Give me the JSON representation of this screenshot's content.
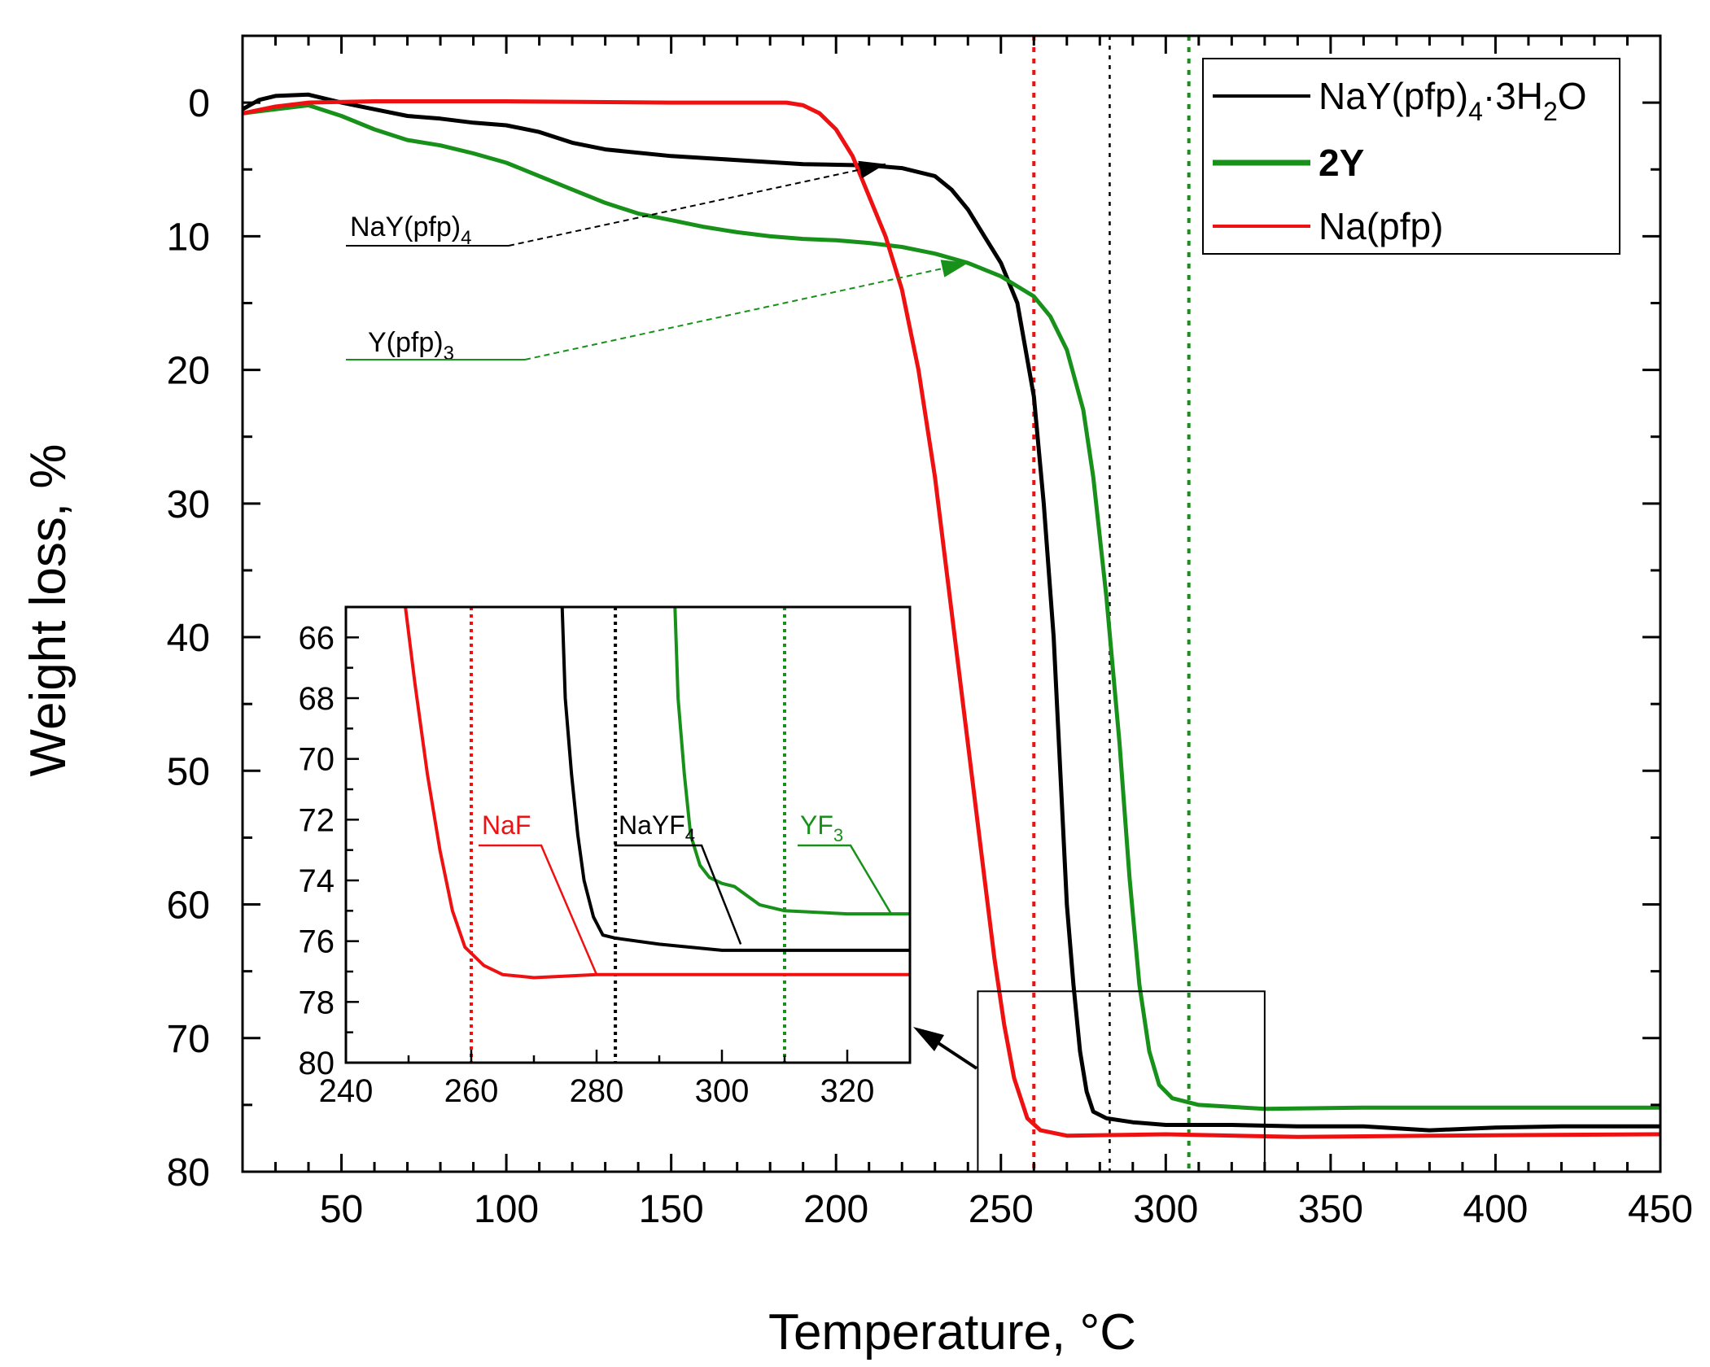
{
  "chart_data": {
    "type": "line",
    "xlabel": "Temperature, °C",
    "ylabel": "Weight loss, %",
    "xlim": [
      20,
      450
    ],
    "ylim": [
      80,
      -5
    ],
    "y_inverted": true,
    "xticks": [
      50,
      100,
      150,
      200,
      250,
      300,
      350,
      400,
      450
    ],
    "yticks": [
      0,
      10,
      20,
      30,
      40,
      50,
      60,
      70,
      80
    ],
    "series": [
      {
        "name": "NaY(pfp)4·3H2O",
        "color": "#000000",
        "points": [
          [
            20,
            0.5
          ],
          [
            25,
            -0.2
          ],
          [
            30,
            -0.5
          ],
          [
            40,
            -0.6
          ],
          [
            50,
            0
          ],
          [
            60,
            0.5
          ],
          [
            70,
            1
          ],
          [
            80,
            1.2
          ],
          [
            90,
            1.5
          ],
          [
            100,
            1.7
          ],
          [
            110,
            2.2
          ],
          [
            120,
            3
          ],
          [
            130,
            3.5
          ],
          [
            150,
            4
          ],
          [
            170,
            4.3
          ],
          [
            190,
            4.6
          ],
          [
            210,
            4.7
          ],
          [
            220,
            4.9
          ],
          [
            230,
            5.5
          ],
          [
            235,
            6.5
          ],
          [
            240,
            8
          ],
          [
            245,
            10
          ],
          [
            250,
            12
          ],
          [
            255,
            15
          ],
          [
            260,
            22
          ],
          [
            263,
            30
          ],
          [
            266,
            40
          ],
          [
            268,
            50
          ],
          [
            270,
            60
          ],
          [
            272,
            66
          ],
          [
            274,
            71
          ],
          [
            276,
            74
          ],
          [
            278,
            75.5
          ],
          [
            282,
            76
          ],
          [
            290,
            76.3
          ],
          [
            300,
            76.5
          ],
          [
            320,
            76.5
          ],
          [
            340,
            76.6
          ],
          [
            360,
            76.6
          ],
          [
            380,
            76.9
          ],
          [
            400,
            76.7
          ],
          [
            420,
            76.6
          ],
          [
            450,
            76.6
          ]
        ]
      },
      {
        "name": "2Y",
        "color": "#17911a",
        "points": [
          [
            20,
            0.8
          ],
          [
            30,
            0.5
          ],
          [
            40,
            0.2
          ],
          [
            50,
            1
          ],
          [
            60,
            2
          ],
          [
            70,
            2.8
          ],
          [
            80,
            3.2
          ],
          [
            90,
            3.8
          ],
          [
            100,
            4.5
          ],
          [
            110,
            5.5
          ],
          [
            120,
            6.5
          ],
          [
            130,
            7.5
          ],
          [
            140,
            8.3
          ],
          [
            150,
            8.8
          ],
          [
            160,
            9.3
          ],
          [
            170,
            9.7
          ],
          [
            180,
            10
          ],
          [
            190,
            10.2
          ],
          [
            200,
            10.3
          ],
          [
            210,
            10.5
          ],
          [
            220,
            10.8
          ],
          [
            230,
            11.3
          ],
          [
            240,
            12
          ],
          [
            250,
            13
          ],
          [
            260,
            14.5
          ],
          [
            265,
            16
          ],
          [
            270,
            18.5
          ],
          [
            275,
            23
          ],
          [
            278,
            28
          ],
          [
            282,
            37
          ],
          [
            286,
            48
          ],
          [
            289,
            58
          ],
          [
            292,
            66
          ],
          [
            295,
            71
          ],
          [
            298,
            73.5
          ],
          [
            302,
            74.5
          ],
          [
            310,
            75
          ],
          [
            330,
            75.3
          ],
          [
            360,
            75.2
          ],
          [
            400,
            75.2
          ],
          [
            450,
            75.2
          ]
        ]
      },
      {
        "name": "Na(pfp)",
        "color": "#ef1111",
        "points": [
          [
            20,
            0.8
          ],
          [
            30,
            0.3
          ],
          [
            40,
            0
          ],
          [
            60,
            -0.1
          ],
          [
            100,
            -0.1
          ],
          [
            150,
            0
          ],
          [
            185,
            0
          ],
          [
            190,
            0.2
          ],
          [
            195,
            0.8
          ],
          [
            200,
            2
          ],
          [
            205,
            4
          ],
          [
            210,
            7
          ],
          [
            215,
            10
          ],
          [
            220,
            14
          ],
          [
            225,
            20
          ],
          [
            230,
            28
          ],
          [
            235,
            38
          ],
          [
            240,
            48
          ],
          [
            245,
            58
          ],
          [
            248,
            64
          ],
          [
            251,
            69
          ],
          [
            254,
            73
          ],
          [
            258,
            76
          ],
          [
            262,
            76.9
          ],
          [
            270,
            77.3
          ],
          [
            300,
            77.2
          ],
          [
            340,
            77.4
          ],
          [
            380,
            77.3
          ],
          [
            450,
            77.2
          ]
        ]
      }
    ],
    "vlines": [
      {
        "x": 260,
        "color": "#ef1111",
        "style": "dotted"
      },
      {
        "x": 283,
        "color": "#000000",
        "style": "dotted"
      },
      {
        "x": 307,
        "color": "#17911a",
        "style": "dotted"
      }
    ],
    "legend": {
      "position": "top-right",
      "entries": [
        {
          "label": "NaY(pfp)4·3H2O",
          "color": "#000000",
          "bold": false
        },
        {
          "label": "2Y",
          "color": "#17911a",
          "bold": true
        },
        {
          "label": "Na(pfp)",
          "color": "#ef1111",
          "bold": false
        }
      ]
    },
    "annotations": [
      {
        "text": "NaY(pfp)4",
        "color": "#000000",
        "arrow_to": [
          215,
          4.6
        ]
      },
      {
        "text": "Y(pfp)3",
        "color": "#17911a",
        "arrow_to": [
          240,
          12
        ]
      }
    ],
    "zoom_box": {
      "xlim": [
        243,
        330
      ],
      "ylim": [
        66.5,
        80
      ]
    },
    "inset": {
      "xlim": [
        240,
        330
      ],
      "ylim": [
        80,
        65
      ],
      "xticks": [
        240,
        260,
        280,
        300,
        320
      ],
      "yticks": [
        66,
        68,
        70,
        72,
        74,
        76,
        78,
        80
      ],
      "series": [
        {
          "name": "Na(pfp)",
          "color": "#ef1111",
          "points": [
            [
              249.5,
              65
            ],
            [
              251,
              67.5
            ],
            [
              253,
              70.5
            ],
            [
              255,
              73
            ],
            [
              257,
              75
            ],
            [
              259,
              76.2
            ],
            [
              262,
              76.8
            ],
            [
              265,
              77.1
            ],
            [
              270,
              77.2
            ],
            [
              280,
              77.1
            ],
            [
              300,
              77.1
            ],
            [
              330,
              77.1
            ]
          ]
        },
        {
          "name": "NaY(pfp)4·3H2O",
          "color": "#000000",
          "points": [
            [
              274.5,
              65
            ],
            [
              275,
              68
            ],
            [
              276,
              70.5
            ],
            [
              277,
              72.5
            ],
            [
              278,
              74
            ],
            [
              279.5,
              75.2
            ],
            [
              281,
              75.8
            ],
            [
              283,
              75.9
            ],
            [
              290,
              76.1
            ],
            [
              300,
              76.3
            ],
            [
              320,
              76.3
            ],
            [
              330,
              76.3
            ]
          ]
        },
        {
          "name": "2Y",
          "color": "#17911a",
          "points": [
            [
              292.5,
              65
            ],
            [
              293,
              68
            ],
            [
              294,
              70.5
            ],
            [
              295,
              72.5
            ],
            [
              296.5,
              73.5
            ],
            [
              298,
              73.9
            ],
            [
              300,
              74.1
            ],
            [
              302,
              74.2
            ],
            [
              304,
              74.5
            ],
            [
              306,
              74.8
            ],
            [
              310,
              75
            ],
            [
              320,
              75.1
            ],
            [
              330,
              75.1
            ]
          ]
        }
      ],
      "vlines": [
        {
          "x": 260,
          "color": "#ef1111"
        },
        {
          "x": 283,
          "color": "#000000"
        },
        {
          "x": 310,
          "color": "#17911a"
        }
      ],
      "labels": [
        {
          "text": "NaF",
          "color": "#ef1111",
          "line_to": [
            280,
            77.1
          ]
        },
        {
          "text": "NaYF4",
          "color": "#000000",
          "line_to": [
            303,
            76.1
          ]
        },
        {
          "text": "YF3",
          "color": "#17911a",
          "line_to": [
            327,
            75.1
          ]
        }
      ]
    }
  }
}
